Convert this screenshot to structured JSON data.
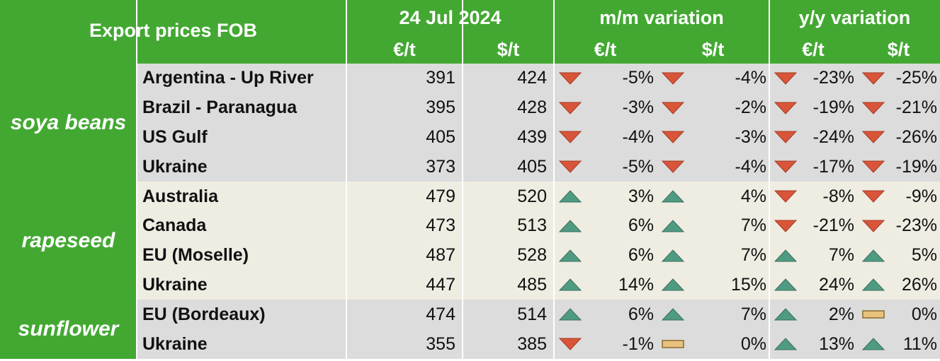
{
  "header": {
    "title": "Export prices FOB",
    "date": "24 Jul 2024",
    "mm_label": "m/m variation",
    "yy_label": "y/y variation",
    "unit_eur": "€/t",
    "unit_usd": "$/t"
  },
  "colors": {
    "header_green": "#43a832",
    "band_grey": "#dcdcdc",
    "band_cream": "#efece2",
    "down_red": "#d9553a",
    "up_teal": "#4f9b82",
    "flat_tan": "#e8c27c"
  },
  "groups": [
    {
      "product": "soya beans",
      "band": "grey",
      "rows": [
        {
          "origin": "Argentina - Up River",
          "eur": "391",
          "usd": "424",
          "mm_eur": "-5%",
          "mm_usd": "-4%",
          "yy_eur": "-23%",
          "yy_usd": "-25%",
          "d": [
            "down",
            "down",
            "down",
            "down"
          ]
        },
        {
          "origin": "Brazil - Paranagua",
          "eur": "395",
          "usd": "428",
          "mm_eur": "-3%",
          "mm_usd": "-2%",
          "yy_eur": "-19%",
          "yy_usd": "-21%",
          "d": [
            "down",
            "down",
            "down",
            "down"
          ]
        },
        {
          "origin": "US Gulf",
          "eur": "405",
          "usd": "439",
          "mm_eur": "-4%",
          "mm_usd": "-3%",
          "yy_eur": "-24%",
          "yy_usd": "-26%",
          "d": [
            "down",
            "down",
            "down",
            "down"
          ]
        },
        {
          "origin": "Ukraine",
          "eur": "373",
          "usd": "405",
          "mm_eur": "-5%",
          "mm_usd": "-4%",
          "yy_eur": "-17%",
          "yy_usd": "-19%",
          "d": [
            "down",
            "down",
            "down",
            "down"
          ]
        }
      ]
    },
    {
      "product": "rapeseed",
      "band": "cream",
      "rows": [
        {
          "origin": "Australia",
          "eur": "479",
          "usd": "520",
          "mm_eur": "3%",
          "mm_usd": "4%",
          "yy_eur": "-8%",
          "yy_usd": "-9%",
          "d": [
            "up",
            "up",
            "down",
            "down"
          ]
        },
        {
          "origin": "Canada",
          "eur": "473",
          "usd": "513",
          "mm_eur": "6%",
          "mm_usd": "7%",
          "yy_eur": "-21%",
          "yy_usd": "-23%",
          "d": [
            "up",
            "up",
            "down",
            "down"
          ]
        },
        {
          "origin": "EU (Moselle)",
          "eur": "487",
          "usd": "528",
          "mm_eur": "6%",
          "mm_usd": "7%",
          "yy_eur": "7%",
          "yy_usd": "5%",
          "d": [
            "up",
            "up",
            "up",
            "up"
          ]
        },
        {
          "origin": "Ukraine",
          "eur": "447",
          "usd": "485",
          "mm_eur": "14%",
          "mm_usd": "15%",
          "yy_eur": "24%",
          "yy_usd": "26%",
          "d": [
            "up",
            "up",
            "up",
            "up"
          ]
        }
      ]
    },
    {
      "product": "sunflower",
      "band": "grey",
      "rows": [
        {
          "origin": "EU (Bordeaux)",
          "eur": "474",
          "usd": "514",
          "mm_eur": "6%",
          "mm_usd": "7%",
          "yy_eur": "2%",
          "yy_usd": "0%",
          "d": [
            "up",
            "up",
            "up",
            "flat"
          ]
        },
        {
          "origin": "Ukraine",
          "eur": "355",
          "usd": "385",
          "mm_eur": "-1%",
          "mm_usd": "0%",
          "yy_eur": "13%",
          "yy_usd": "11%",
          "d": [
            "down",
            "flat",
            "up",
            "up"
          ]
        }
      ]
    }
  ]
}
